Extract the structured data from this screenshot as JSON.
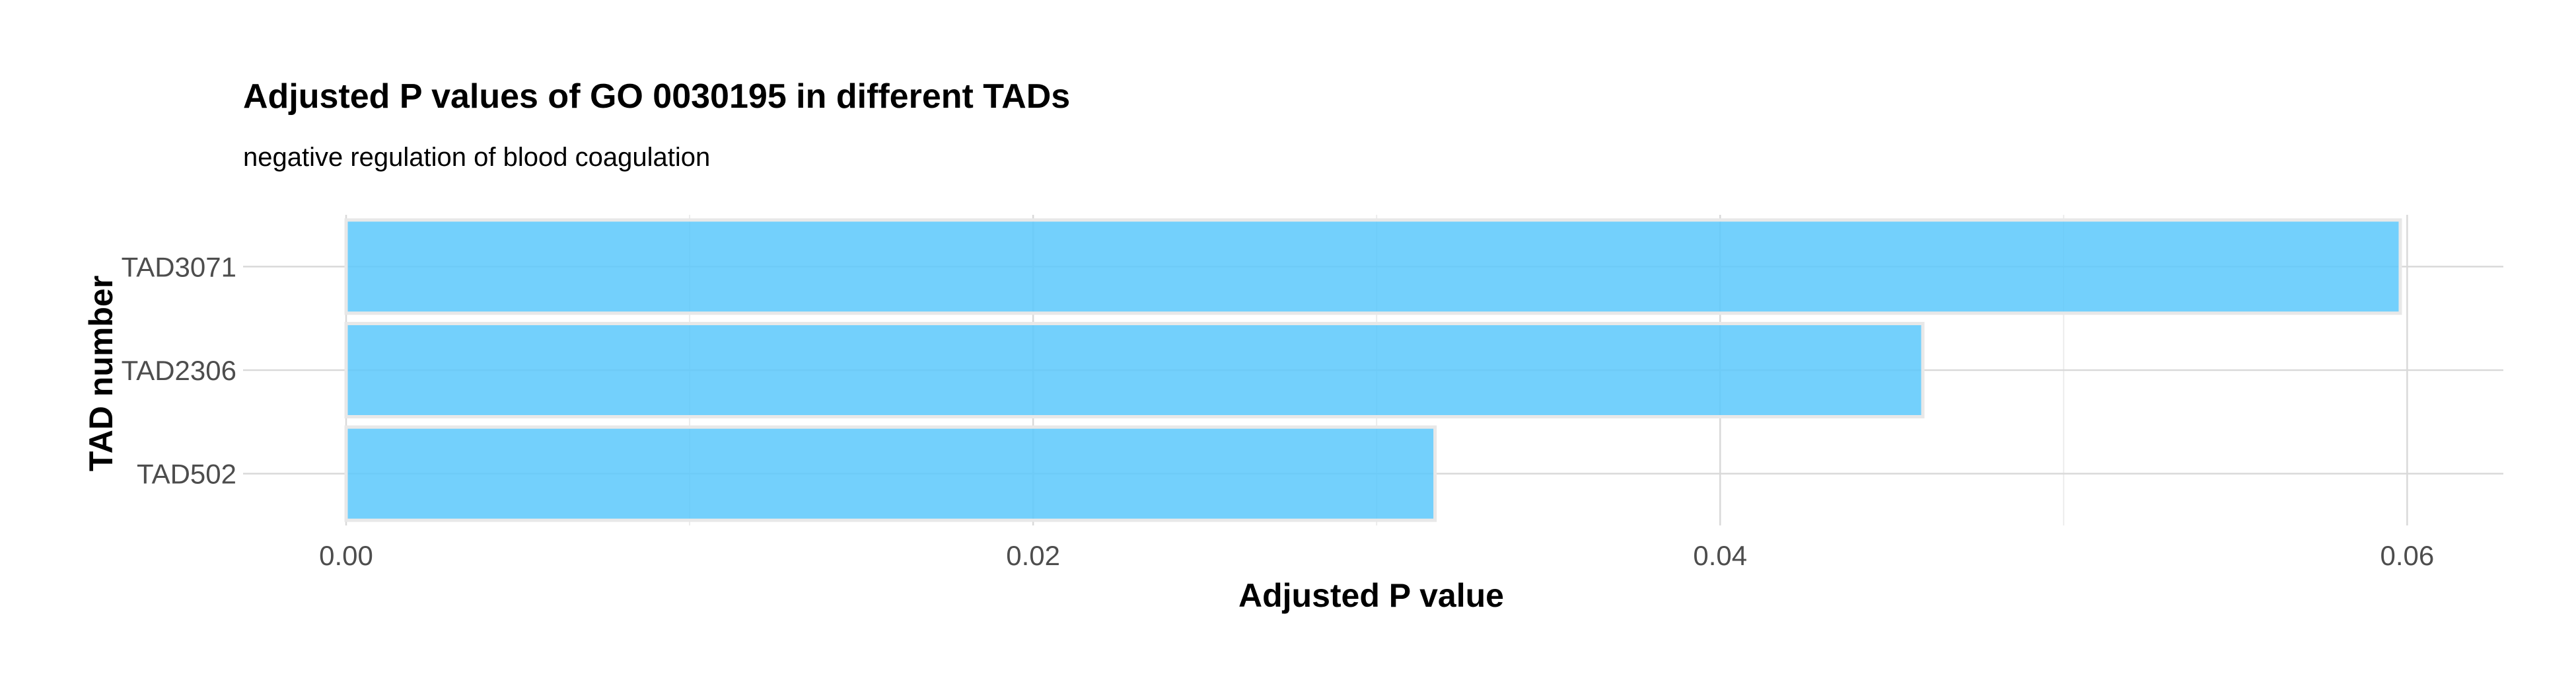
{
  "chart_data": {
    "type": "bar",
    "orientation": "horizontal",
    "title": "Adjusted P values of GO 0030195 in different TADs",
    "subtitle": "negative regulation of blood coagulation",
    "xlabel": "Adjusted P value",
    "ylabel": "TAD number",
    "categories": [
      "TAD3071",
      "TAD2306",
      "TAD502"
    ],
    "values": [
      0.0598,
      0.0459,
      0.0317
    ],
    "xlim": [
      -0.003,
      0.0628
    ],
    "xticks": [
      0.0,
      0.02,
      0.04,
      0.06
    ],
    "xtick_labels": [
      "0.00",
      "0.02",
      "0.04",
      "0.06"
    ],
    "x_minor_ticks": [
      0.01,
      0.03,
      0.05
    ],
    "bar_color": "#5bc8fb",
    "grid": true,
    "legend": "none"
  }
}
